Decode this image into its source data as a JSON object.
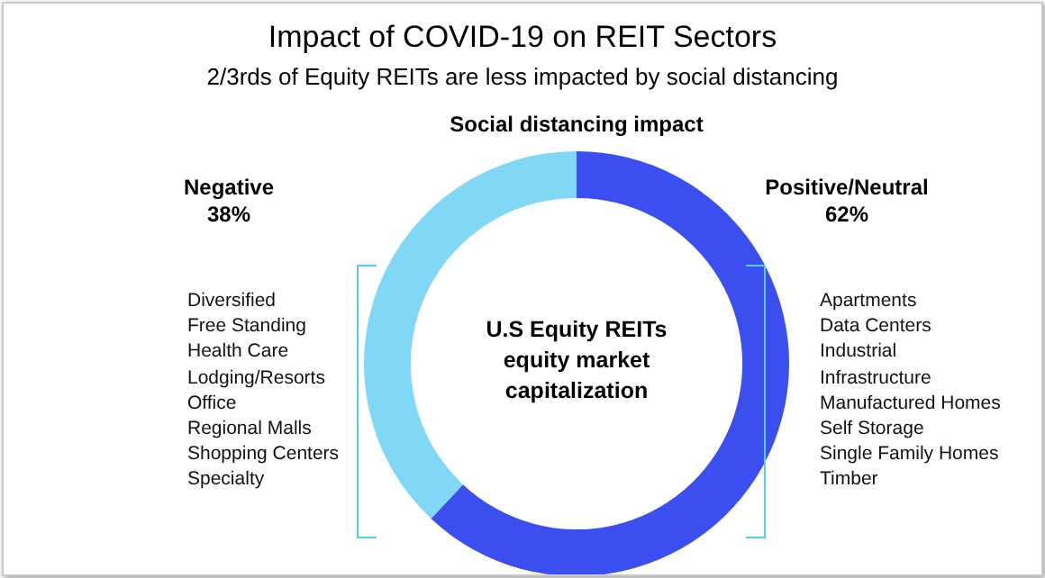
{
  "chart_data": {
    "type": "donut",
    "title": "Impact of COVID-19 on REIT Sectors",
    "subtitle": "2/3rds of Equity REITs are less impacted by social distancing",
    "categories": [
      "Positive/Neutral",
      "Negative"
    ],
    "values": [
      62,
      38
    ],
    "value_labels": [
      "62%",
      "38%"
    ],
    "colors": [
      "#3b4ff0",
      "#80d8f6"
    ],
    "annotations": [
      "Social distancing impact",
      "U.S Equity REITs\nequity market\ncapitalization",
      "Diversified\nFree Standing\nHealth Care\nLodging/Resorts\nOffice\nRegional Malls\nShopping Centers\nSpecialty",
      "Apartments\nData Centers\nIndustrial\nInfrastructure\nManufactured Homes\nSelf Storage\nSingle Family Homes\nTimber"
    ]
  }
}
